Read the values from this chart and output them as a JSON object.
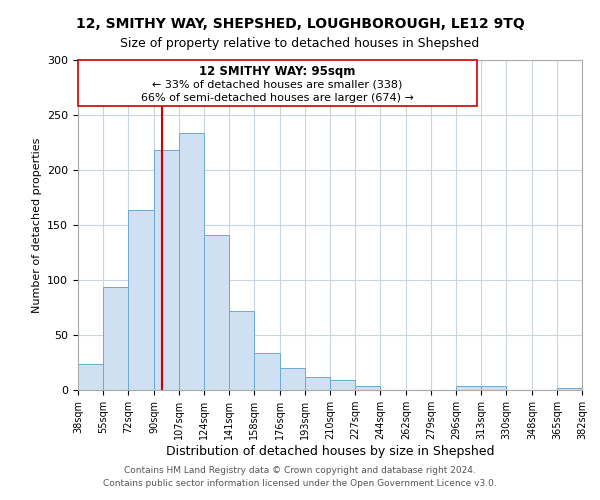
{
  "title": "12, SMITHY WAY, SHEPSHED, LOUGHBOROUGH, LE12 9TQ",
  "subtitle": "Size of property relative to detached houses in Shepshed",
  "xlabel": "Distribution of detached houses by size in Shepshed",
  "ylabel": "Number of detached properties",
  "bar_color": "#cfe0f3",
  "bar_edge_color": "#6aaad4",
  "background_color": "#ffffff",
  "grid_color": "#c8d4e0",
  "marker_line_value": 95,
  "marker_line_color": "#cc0000",
  "annotation_box_color": "#ffffff",
  "annotation_box_edge": "#cc0000",
  "annotation_title": "12 SMITHY WAY: 95sqm",
  "annotation_line1": "← 33% of detached houses are smaller (338)",
  "annotation_line2": "66% of semi-detached houses are larger (674) →",
  "footer_line1": "Contains HM Land Registry data © Crown copyright and database right 2024.",
  "footer_line2": "Contains public sector information licensed under the Open Government Licence v3.0.",
  "bin_edges": [
    38,
    55,
    72,
    90,
    107,
    124,
    141,
    158,
    176,
    193,
    210,
    227,
    244,
    262,
    279,
    296,
    313,
    330,
    348,
    365,
    382
  ],
  "bin_counts": [
    24,
    94,
    164,
    218,
    234,
    141,
    72,
    34,
    20,
    12,
    9,
    4,
    0,
    0,
    0,
    4,
    4,
    0,
    0,
    2
  ],
  "tick_labels": [
    "38sqm",
    "55sqm",
    "72sqm",
    "90sqm",
    "107sqm",
    "124sqm",
    "141sqm",
    "158sqm",
    "176sqm",
    "193sqm",
    "210sqm",
    "227sqm",
    "244sqm",
    "262sqm",
    "279sqm",
    "296sqm",
    "313sqm",
    "330sqm",
    "348sqm",
    "365sqm",
    "382sqm"
  ],
  "ylim": [
    0,
    300
  ],
  "yticks": [
    0,
    50,
    100,
    150,
    200,
    250,
    300
  ]
}
